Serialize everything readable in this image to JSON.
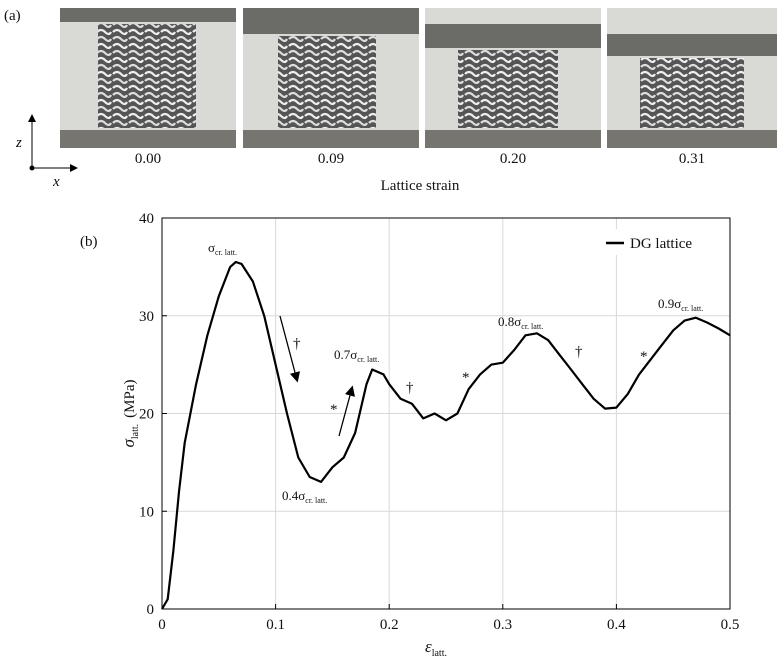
{
  "panel_a": {
    "label": "(a)",
    "strains": [
      "0.00",
      "0.09",
      "0.20",
      "0.31"
    ],
    "xlabel": "Lattice strain",
    "axis_z": "z",
    "axis_x": "x"
  },
  "chart_data": {
    "type": "line",
    "panel_label": "(b)",
    "xlabel": {
      "symbol": "ε",
      "sub": "latt."
    },
    "ylabel": {
      "symbol": "σ",
      "sub": "latt.",
      "unit": "(MPa)"
    },
    "xlim": [
      0,
      0.5
    ],
    "xticks": [
      0,
      0.1,
      0.2,
      0.3,
      0.4,
      0.5
    ],
    "ylim": [
      0,
      40
    ],
    "yticks": [
      0,
      10,
      20,
      30,
      40
    ],
    "grid": true,
    "legend": "upper right",
    "series": [
      {
        "name": "DG lattice",
        "color": "#000000",
        "x": [
          0,
          0.005,
          0.01,
          0.015,
          0.02,
          0.03,
          0.04,
          0.05,
          0.06,
          0.065,
          0.07,
          0.08,
          0.09,
          0.1,
          0.11,
          0.12,
          0.13,
          0.14,
          0.15,
          0.16,
          0.17,
          0.18,
          0.185,
          0.195,
          0.2,
          0.21,
          0.22,
          0.23,
          0.24,
          0.25,
          0.26,
          0.27,
          0.28,
          0.29,
          0.3,
          0.31,
          0.32,
          0.33,
          0.34,
          0.35,
          0.36,
          0.37,
          0.38,
          0.39,
          0.4,
          0.41,
          0.42,
          0.43,
          0.44,
          0.45,
          0.46,
          0.47,
          0.48,
          0.49,
          0.5
        ],
        "values": [
          0,
          1,
          6,
          12,
          17,
          23,
          28,
          32,
          35,
          35.5,
          35.3,
          33.5,
          30,
          25,
          20,
          15.5,
          13.5,
          13,
          14.5,
          15.5,
          18,
          23,
          24.5,
          24,
          23,
          21.5,
          21,
          19.5,
          20,
          19.3,
          20,
          22.5,
          24,
          25,
          25.2,
          26.5,
          28,
          28.2,
          27.5,
          26,
          24.5,
          23,
          21.5,
          20.5,
          20.6,
          22,
          24,
          25.5,
          27,
          28.5,
          29.5,
          29.8,
          29.3,
          28.7,
          28
        ]
      }
    ],
    "annotations": [
      {
        "text": "σ",
        "sub": "cr. latt."
      },
      {
        "text": "0.4σ",
        "sub": "cr. latt."
      },
      {
        "text": "0.7σ",
        "sub": "cr. latt."
      },
      {
        "text": "0.8σ",
        "sub": "cr. latt."
      },
      {
        "text": "0.9σ",
        "sub": "cr. latt."
      }
    ],
    "markers": [
      "†",
      "*",
      "†",
      "*",
      "†",
      "*"
    ]
  }
}
